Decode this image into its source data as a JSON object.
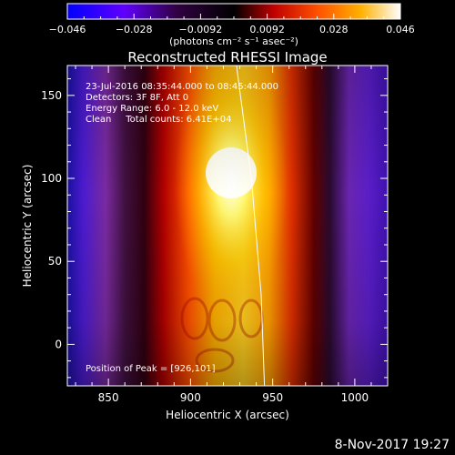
{
  "chart_data": {
    "type": "heatmap",
    "title": "Reconstructed RHESSI Image",
    "xlabel": "Heliocentric X (arcsec)",
    "ylabel": "Heliocentric Y (arcsec)",
    "xlim": [
      825,
      1020
    ],
    "ylim": [
      -25,
      168
    ],
    "xticks": [
      850,
      900,
      950,
      1000
    ],
    "yticks": [
      0,
      50,
      100,
      150
    ],
    "colorbar": {
      "label": "(photons cm⁻² s⁻¹ asec⁻²)",
      "range": [
        -0.046,
        0.046
      ],
      "ticks": [
        "−0.046",
        "−0.028",
        "−0.0092",
        "0.0092",
        "0.028",
        "0.046"
      ],
      "colormap": [
        "#0000ff",
        "#8000ff",
        "#200030",
        "#000000",
        "#c00000",
        "#ff6000",
        "#ffc000",
        "#ffffff"
      ]
    },
    "annotations": [
      "23-Jul-2016 08:35:44.000 to 08:45:44.000",
      "Detectors: 3F 8F, Att 0",
      "Energy Range: 6.0 - 12.0 keV",
      "Clean     Total counts: 6.41E+04"
    ],
    "peak_label": "Position of Peak = [926,101]",
    "peak": [
      926,
      101
    ],
    "limb_line": [
      [
        928,
        168
      ],
      [
        937,
        100
      ],
      [
        943,
        30
      ],
      [
        945,
        -25
      ]
    ]
  },
  "footer": {
    "timestamp": "8-Nov-2017 19:27"
  }
}
